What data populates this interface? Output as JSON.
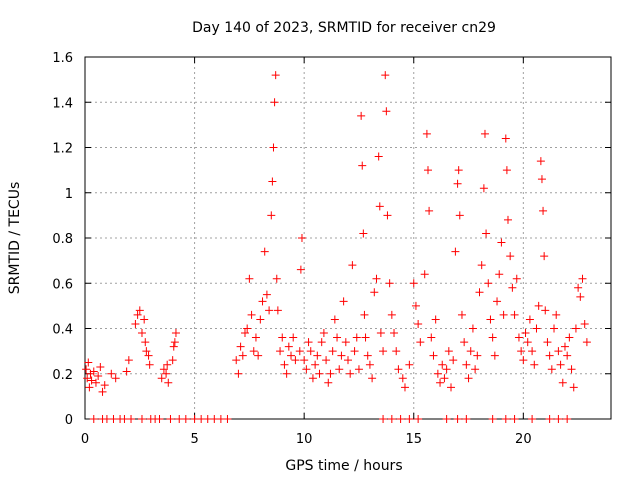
{
  "chart_data": {
    "type": "scatter",
    "title": "Day 140 of 2023, SRMTID for receiver cn29",
    "xlabel": "GPS time / hours",
    "ylabel": "SRMTID / TECUs",
    "xlim": [
      0,
      24
    ],
    "ylim": [
      0,
      1.6
    ],
    "grid": true,
    "marker": "plus",
    "color": "#ff0000",
    "x_ticks": [
      0,
      5,
      10,
      15,
      20
    ],
    "x_tick_labels": [
      "0",
      "5",
      "10",
      "15",
      "20"
    ],
    "y_ticks": [
      0,
      0.2,
      0.4,
      0.6,
      0.8,
      1.0,
      1.2,
      1.4,
      1.6
    ],
    "y_tick_labels": [
      "0",
      "0.2",
      "0.4",
      "0.6",
      "0.8",
      "1",
      "1.2",
      "1.4",
      "1.6"
    ],
    "series": [
      {
        "name": "SRMTID",
        "points": [
          [
            0.05,
            0.22
          ],
          [
            0.1,
            0.18
          ],
          [
            0.15,
            0.25
          ],
          [
            0.2,
            0.14
          ],
          [
            0.25,
            0.2
          ],
          [
            0.3,
            0.17
          ],
          [
            0.4,
            0.21
          ],
          [
            0.5,
            0.16
          ],
          [
            0.6,
            0.19
          ],
          [
            0.7,
            0.23
          ],
          [
            0.8,
            0.12
          ],
          [
            0.9,
            0.15
          ],
          [
            1.2,
            0.2
          ],
          [
            1.4,
            0.18
          ],
          [
            1.9,
            0.21
          ],
          [
            2.0,
            0.26
          ],
          [
            2.3,
            0.42
          ],
          [
            2.4,
            0.46
          ],
          [
            2.5,
            0.48
          ],
          [
            2.6,
            0.38
          ],
          [
            2.7,
            0.44
          ],
          [
            2.75,
            0.34
          ],
          [
            2.8,
            0.3
          ],
          [
            2.9,
            0.28
          ],
          [
            2.95,
            0.24
          ],
          [
            3.5,
            0.18
          ],
          [
            3.6,
            0.22
          ],
          [
            3.7,
            0.2
          ],
          [
            3.75,
            0.24
          ],
          [
            3.8,
            0.16
          ],
          [
            4.0,
            0.26
          ],
          [
            4.05,
            0.32
          ],
          [
            4.1,
            0.34
          ],
          [
            4.15,
            0.38
          ],
          [
            6.9,
            0.26
          ],
          [
            7.0,
            0.2
          ],
          [
            7.1,
            0.32
          ],
          [
            7.2,
            0.28
          ],
          [
            7.3,
            0.38
          ],
          [
            7.4,
            0.4
          ],
          [
            7.5,
            0.62
          ],
          [
            7.6,
            0.46
          ],
          [
            7.7,
            0.3
          ],
          [
            7.8,
            0.36
          ],
          [
            7.9,
            0.28
          ],
          [
            8.0,
            0.44
          ],
          [
            8.1,
            0.52
          ],
          [
            8.2,
            0.74
          ],
          [
            8.3,
            0.55
          ],
          [
            8.4,
            0.48
          ],
          [
            8.5,
            0.9
          ],
          [
            8.55,
            1.05
          ],
          [
            8.6,
            1.2
          ],
          [
            8.65,
            1.4
          ],
          [
            8.7,
            1.52
          ],
          [
            8.75,
            0.62
          ],
          [
            8.8,
            0.48
          ],
          [
            8.9,
            0.3
          ],
          [
            9.0,
            0.36
          ],
          [
            9.1,
            0.24
          ],
          [
            9.2,
            0.2
          ],
          [
            9.3,
            0.32
          ],
          [
            9.4,
            0.28
          ],
          [
            9.5,
            0.36
          ],
          [
            9.6,
            0.26
          ],
          [
            9.8,
            0.3
          ],
          [
            9.85,
            0.66
          ],
          [
            9.9,
            0.8
          ],
          [
            10.0,
            0.26
          ],
          [
            10.1,
            0.22
          ],
          [
            10.2,
            0.34
          ],
          [
            10.3,
            0.3
          ],
          [
            10.4,
            0.18
          ],
          [
            10.5,
            0.24
          ],
          [
            10.6,
            0.28
          ],
          [
            10.7,
            0.2
          ],
          [
            10.8,
            0.34
          ],
          [
            10.9,
            0.38
          ],
          [
            11.0,
            0.26
          ],
          [
            11.1,
            0.16
          ],
          [
            11.2,
            0.2
          ],
          [
            11.3,
            0.3
          ],
          [
            11.4,
            0.44
          ],
          [
            11.5,
            0.36
          ],
          [
            11.6,
            0.22
          ],
          [
            11.7,
            0.28
          ],
          [
            11.8,
            0.52
          ],
          [
            11.9,
            0.34
          ],
          [
            12.0,
            0.26
          ],
          [
            12.1,
            0.2
          ],
          [
            12.2,
            0.68
          ],
          [
            12.3,
            0.3
          ],
          [
            12.4,
            0.36
          ],
          [
            12.5,
            0.22
          ],
          [
            12.6,
            1.34
          ],
          [
            12.65,
            1.12
          ],
          [
            12.7,
            0.82
          ],
          [
            12.75,
            0.46
          ],
          [
            12.8,
            0.36
          ],
          [
            12.9,
            0.28
          ],
          [
            13.0,
            0.24
          ],
          [
            13.1,
            0.18
          ],
          [
            13.2,
            0.56
          ],
          [
            13.3,
            0.62
          ],
          [
            13.4,
            1.16
          ],
          [
            13.45,
            0.94
          ],
          [
            13.5,
            0.38
          ],
          [
            13.6,
            0.3
          ],
          [
            13.7,
            1.52
          ],
          [
            13.75,
            1.36
          ],
          [
            13.8,
            0.9
          ],
          [
            13.9,
            0.6
          ],
          [
            14.0,
            0.46
          ],
          [
            14.1,
            0.38
          ],
          [
            14.2,
            0.3
          ],
          [
            14.3,
            0.22
          ],
          [
            14.5,
            0.18
          ],
          [
            14.6,
            0.14
          ],
          [
            14.8,
            0.24
          ],
          [
            15.0,
            0.6
          ],
          [
            15.1,
            0.5
          ],
          [
            15.2,
            0.42
          ],
          [
            15.3,
            0.34
          ],
          [
            15.5,
            0.64
          ],
          [
            15.6,
            1.26
          ],
          [
            15.65,
            1.1
          ],
          [
            15.7,
            0.92
          ],
          [
            15.8,
            0.36
          ],
          [
            15.9,
            0.28
          ],
          [
            16.0,
            0.44
          ],
          [
            16.1,
            0.2
          ],
          [
            16.2,
            0.16
          ],
          [
            16.3,
            0.24
          ],
          [
            16.4,
            0.18
          ],
          [
            16.5,
            0.22
          ],
          [
            16.6,
            0.3
          ],
          [
            16.7,
            0.14
          ],
          [
            16.8,
            0.26
          ],
          [
            16.9,
            0.74
          ],
          [
            17.0,
            1.04
          ],
          [
            17.05,
            1.1
          ],
          [
            17.1,
            0.9
          ],
          [
            17.2,
            0.46
          ],
          [
            17.3,
            0.34
          ],
          [
            17.4,
            0.24
          ],
          [
            17.5,
            0.18
          ],
          [
            17.6,
            0.3
          ],
          [
            17.7,
            0.4
          ],
          [
            17.8,
            0.22
          ],
          [
            17.9,
            0.28
          ],
          [
            18.0,
            0.56
          ],
          [
            18.1,
            0.68
          ],
          [
            18.2,
            1.02
          ],
          [
            18.25,
            1.26
          ],
          [
            18.3,
            0.82
          ],
          [
            18.4,
            0.6
          ],
          [
            18.5,
            0.44
          ],
          [
            18.6,
            0.36
          ],
          [
            18.7,
            0.28
          ],
          [
            18.8,
            0.52
          ],
          [
            18.9,
            0.64
          ],
          [
            19.0,
            0.78
          ],
          [
            19.1,
            0.46
          ],
          [
            19.2,
            1.24
          ],
          [
            19.25,
            1.1
          ],
          [
            19.3,
            0.88
          ],
          [
            19.4,
            0.72
          ],
          [
            19.5,
            0.58
          ],
          [
            19.6,
            0.46
          ],
          [
            19.7,
            0.62
          ],
          [
            19.8,
            0.36
          ],
          [
            19.9,
            0.3
          ],
          [
            20.0,
            0.26
          ],
          [
            20.1,
            0.38
          ],
          [
            20.2,
            0.34
          ],
          [
            20.3,
            0.44
          ],
          [
            20.4,
            0.3
          ],
          [
            20.5,
            0.24
          ],
          [
            20.6,
            0.4
          ],
          [
            20.7,
            0.5
          ],
          [
            20.8,
            1.14
          ],
          [
            20.85,
            1.06
          ],
          [
            20.9,
            0.92
          ],
          [
            20.95,
            0.72
          ],
          [
            21.0,
            0.48
          ],
          [
            21.1,
            0.34
          ],
          [
            21.2,
            0.28
          ],
          [
            21.3,
            0.22
          ],
          [
            21.4,
            0.4
          ],
          [
            21.5,
            0.46
          ],
          [
            21.6,
            0.3
          ],
          [
            21.7,
            0.24
          ],
          [
            21.8,
            0.16
          ],
          [
            21.9,
            0.32
          ],
          [
            22.0,
            0.28
          ],
          [
            22.1,
            0.36
          ],
          [
            22.2,
            0.22
          ],
          [
            22.3,
            0.14
          ],
          [
            22.4,
            0.4
          ],
          [
            22.5,
            0.58
          ],
          [
            22.6,
            0.54
          ],
          [
            22.7,
            0.62
          ],
          [
            22.8,
            0.42
          ],
          [
            22.9,
            0.34
          ],
          [
            0.4,
            0
          ],
          [
            0.8,
            0
          ],
          [
            1.0,
            0
          ],
          [
            1.3,
            0
          ],
          [
            1.6,
            0
          ],
          [
            1.8,
            0
          ],
          [
            2.1,
            0
          ],
          [
            2.6,
            0
          ],
          [
            3.0,
            0
          ],
          [
            3.2,
            0
          ],
          [
            3.4,
            0
          ],
          [
            3.9,
            0
          ],
          [
            4.3,
            0
          ],
          [
            4.6,
            0
          ],
          [
            5.0,
            0
          ],
          [
            5.3,
            0
          ],
          [
            5.6,
            0
          ],
          [
            5.9,
            0
          ],
          [
            6.2,
            0
          ],
          [
            6.5,
            0
          ],
          [
            13.6,
            0
          ],
          [
            14.0,
            0
          ],
          [
            14.4,
            0
          ],
          [
            14.8,
            0
          ],
          [
            15.2,
            0
          ],
          [
            16.5,
            0
          ],
          [
            17.0,
            0
          ],
          [
            17.4,
            0
          ],
          [
            18.6,
            0
          ],
          [
            19.2,
            0
          ],
          [
            19.6,
            0
          ],
          [
            20.4,
            0
          ],
          [
            21.2,
            0
          ],
          [
            21.6,
            0
          ],
          [
            22.0,
            0
          ]
        ]
      }
    ]
  }
}
